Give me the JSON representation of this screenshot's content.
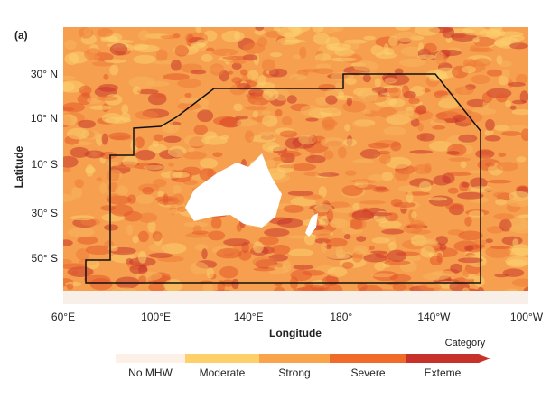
{
  "map": {
    "panel_label": "(a)",
    "y_axis_label": "Latitude",
    "x_axis_label": "Longitude",
    "y_labels": [
      "30° N",
      "10° N",
      "10° S",
      "30° S",
      "50° S"
    ],
    "x_labels": [
      "60°E",
      "100°E",
      "140°E",
      "180°",
      "140°W",
      "100°W"
    ],
    "legend": {
      "title": "Category",
      "items": [
        "No MHW",
        "Moderate",
        "Strong",
        "Severe",
        "Exteme"
      ]
    }
  }
}
